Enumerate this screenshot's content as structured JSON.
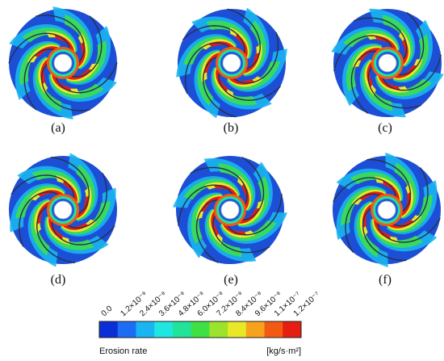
{
  "panels": [
    {
      "label": "(a)"
    },
    {
      "label": "(b)"
    },
    {
      "label": "(c)"
    },
    {
      "label": "(d)"
    },
    {
      "label": "(e)"
    },
    {
      "label": "(f)"
    }
  ],
  "colorbar": {
    "title": "Erosion rate",
    "unit": "[kg/s·m²]",
    "ticks": [
      "0.0",
      "1.2×10⁻⁸",
      "2.4×10⁻⁸",
      "3.6×10⁻⁸",
      "4.8×10⁻⁸",
      "6.0×10⁻⁸",
      "7.2×10⁻⁸",
      "8.4×10⁻⁸",
      "9.6×10⁻⁸",
      "1.1×10⁻⁷",
      "1.2×10⁻⁷"
    ],
    "colors": [
      "#0b2fd6",
      "#1c6cf4",
      "#19b5f0",
      "#1fe6e0",
      "#22e39a",
      "#3ee044",
      "#9be42b",
      "#e8e828",
      "#f7a21c",
      "#f25a14",
      "#e51d12"
    ]
  },
  "colors": {
    "impeller_base": "#1f56e8",
    "blade": "#2a2f4a"
  }
}
